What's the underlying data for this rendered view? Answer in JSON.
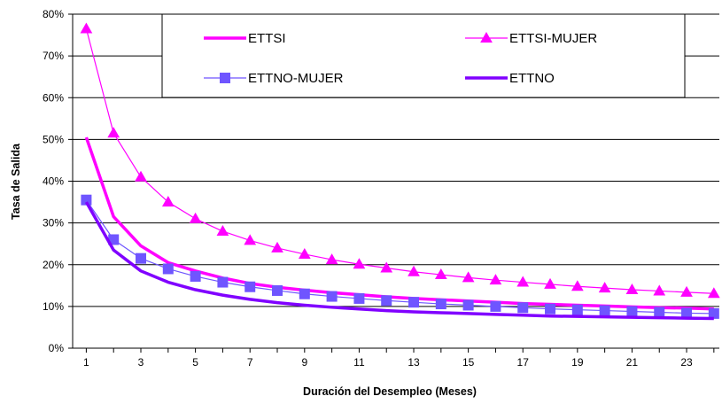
{
  "chart_data": {
    "type": "line",
    "title": "",
    "xlabel": "Duración del Desempleo (Meses)",
    "ylabel": "Tasa de Salida",
    "x": [
      1,
      2,
      3,
      4,
      5,
      6,
      7,
      8,
      9,
      10,
      11,
      12,
      13,
      14,
      15,
      16,
      17,
      18,
      19,
      20,
      21,
      22,
      23,
      24
    ],
    "xticks": [
      1,
      3,
      5,
      7,
      9,
      11,
      13,
      15,
      17,
      19,
      21,
      23
    ],
    "xlim": [
      0.5,
      24.2
    ],
    "ylim": [
      0,
      80
    ],
    "yticks": [
      0,
      10,
      20,
      30,
      40,
      50,
      60,
      70,
      80
    ],
    "ytick_labels": [
      "0%",
      "10%",
      "20%",
      "30%",
      "40%",
      "50%",
      "60%",
      "70%",
      "80%"
    ],
    "grid": "horizontal",
    "legend_position": "top",
    "series": [
      {
        "name": "ETTSI",
        "color": "#ff00ff",
        "marker": "none",
        "values": [
          50.5,
          31.5,
          24.5,
          20.5,
          18.5,
          16.8,
          15.5,
          14.6,
          13.9,
          13.3,
          12.8,
          12.3,
          11.9,
          11.6,
          11.3,
          11.0,
          10.7,
          10.5,
          10.3,
          10.1,
          9.9,
          9.7,
          9.6,
          9.4
        ]
      },
      {
        "name": "ETTSI-MUJER",
        "color": "#ff00ff",
        "marker": "triangle",
        "values": [
          76.5,
          51.5,
          41.0,
          35.0,
          31.0,
          28.0,
          25.8,
          24.0,
          22.5,
          21.2,
          20.1,
          19.2,
          18.3,
          17.6,
          16.9,
          16.3,
          15.8,
          15.3,
          14.8,
          14.4,
          14.0,
          13.7,
          13.4,
          13.1
        ]
      },
      {
        "name": "ETTNO-MUJER",
        "color": "#6f55ff",
        "marker": "square",
        "values": [
          35.5,
          26.0,
          21.5,
          19.0,
          17.2,
          15.8,
          14.7,
          13.8,
          13.0,
          12.4,
          11.9,
          11.4,
          11.0,
          10.6,
          10.3,
          10.0,
          9.7,
          9.4,
          9.2,
          9.0,
          8.8,
          8.6,
          8.4,
          8.3
        ]
      },
      {
        "name": "ETTNO",
        "color": "#8000ff",
        "marker": "none",
        "values": [
          35.0,
          23.5,
          18.5,
          15.8,
          14.0,
          12.7,
          11.7,
          10.9,
          10.3,
          9.8,
          9.4,
          9.0,
          8.7,
          8.5,
          8.3,
          8.1,
          7.9,
          7.7,
          7.6,
          7.5,
          7.4,
          7.3,
          7.2,
          7.1
        ]
      }
    ]
  }
}
